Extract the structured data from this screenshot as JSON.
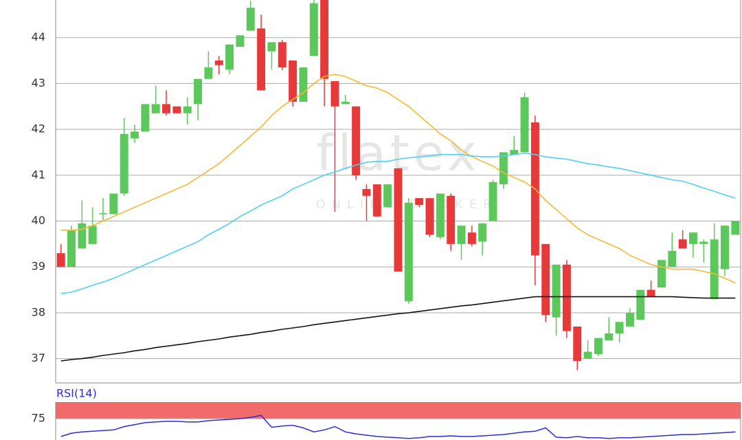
{
  "chart_data": [
    {
      "type": "candlestick",
      "watermark": [
        "flatex",
        "ONLINE BROKER"
      ],
      "open": [
        39.3,
        39.0,
        39.4,
        39.5,
        40.15,
        40.15,
        40.6,
        41.8,
        41.95,
        42.35,
        42.55,
        42.5,
        42.35,
        42.55,
        43.1,
        43.5,
        43.3,
        43.8,
        44.15,
        44.2,
        43.7,
        43.9,
        43.5,
        42.6,
        43.6,
        44.82,
        43.05,
        42.55,
        42.5,
        40.7,
        40.8,
        40.3,
        41.15,
        38.25,
        40.5,
        40.5,
        39.65,
        40.55,
        39.5,
        39.75,
        39.55,
        40.0,
        40.8,
        41.45,
        41.5,
        42.15,
        39.5,
        37.9,
        39.05,
        37.7,
        37.0,
        37.1,
        37.4,
        37.55,
        37.7,
        37.85,
        38.5,
        38.55,
        39.0,
        39.6,
        39.5,
        39.5,
        38.3,
        38.95,
        39.7
      ],
      "high": [
        39.5,
        39.9,
        40.45,
        40.3,
        40.5,
        40.6,
        42.25,
        42.1,
        42.55,
        42.95,
        42.85,
        42.5,
        42.7,
        43.1,
        43.7,
        43.6,
        43.85,
        44.05,
        44.8,
        44.5,
        43.9,
        43.95,
        43.5,
        43.35,
        44.82,
        44.82,
        43.05,
        42.75,
        42.5,
        40.8,
        40.8,
        40.8,
        41.15,
        40.5,
        40.5,
        40.5,
        40.6,
        40.6,
        39.9,
        39.9,
        39.95,
        40.9,
        41.5,
        41.85,
        42.8,
        42.3,
        39.5,
        39.05,
        39.15,
        37.7,
        37.4,
        37.45,
        37.9,
        37.8,
        38.1,
        38.5,
        38.7,
        39.15,
        39.75,
        39.8,
        39.75,
        39.6,
        39.95,
        39.9,
        40.0
      ],
      "low": [
        39.0,
        39.0,
        39.4,
        39.5,
        40.0,
        40.15,
        40.55,
        41.7,
        41.95,
        42.35,
        42.3,
        42.35,
        42.1,
        42.2,
        43.1,
        43.2,
        43.2,
        43.8,
        44.15,
        42.85,
        43.3,
        43.3,
        42.5,
        42.6,
        43.6,
        42.5,
        40.2,
        42.55,
        40.9,
        40.0,
        40.1,
        40.3,
        38.9,
        38.2,
        40.3,
        39.65,
        39.6,
        39.35,
        39.15,
        39.45,
        39.25,
        40.0,
        40.7,
        41.45,
        41.5,
        38.6,
        37.8,
        37.5,
        37.45,
        36.75,
        37.0,
        37.05,
        37.4,
        37.35,
        37.7,
        37.85,
        38.35,
        38.55,
        39.0,
        39.4,
        39.2,
        39.1,
        38.3,
        38.8,
        39.7
      ],
      "close": [
        39.0,
        39.8,
        39.95,
        39.9,
        40.17,
        40.6,
        41.9,
        41.95,
        42.55,
        42.55,
        42.35,
        42.35,
        42.5,
        43.1,
        43.35,
        43.4,
        43.85,
        44.05,
        44.65,
        42.85,
        43.9,
        43.35,
        42.6,
        43.35,
        44.75,
        43.1,
        42.5,
        42.6,
        41.0,
        40.55,
        40.1,
        40.8,
        38.9,
        40.4,
        40.35,
        39.7,
        40.6,
        39.5,
        39.9,
        39.5,
        39.95,
        40.85,
        41.5,
        41.55,
        42.7,
        39.25,
        37.95,
        39.05,
        37.6,
        36.95,
        37.15,
        37.45,
        37.55,
        37.8,
        38.0,
        38.5,
        38.35,
        39.15,
        39.35,
        39.4,
        39.75,
        39.55,
        39.6,
        39.9,
        40.0
      ],
      "up_color": "#5cc85c",
      "down_color": "#e8393a",
      "series": [
        {
          "color": "#f7b733",
          "values": [
            39.8,
            39.8,
            39.82,
            39.9,
            40.0,
            40.1,
            40.2,
            40.3,
            40.4,
            40.5,
            40.6,
            40.7,
            40.8,
            40.95,
            41.1,
            41.25,
            41.45,
            41.65,
            41.85,
            42.05,
            42.3,
            42.5,
            42.65,
            42.8,
            43.0,
            43.15,
            43.2,
            43.15,
            43.05,
            42.95,
            42.9,
            42.8,
            42.65,
            42.5,
            42.3,
            42.1,
            41.9,
            41.75,
            41.55,
            41.4,
            41.3,
            41.2,
            41.05,
            40.95,
            40.85,
            40.7,
            40.45,
            40.25,
            40.05,
            39.85,
            39.7,
            39.6,
            39.5,
            39.4,
            39.25,
            39.15,
            39.05,
            39.0,
            38.95,
            38.95,
            38.95,
            38.9,
            38.85,
            38.75,
            38.65
          ]
        },
        {
          "color": "#4fd0f0",
          "values": [
            38.42,
            38.45,
            38.52,
            38.6,
            38.67,
            38.75,
            38.85,
            38.95,
            39.05,
            39.15,
            39.25,
            39.35,
            39.45,
            39.55,
            39.7,
            39.82,
            39.95,
            40.1,
            40.22,
            40.35,
            40.45,
            40.55,
            40.7,
            40.8,
            40.9,
            41.0,
            41.07,
            41.15,
            41.22,
            41.28,
            41.3,
            41.3,
            41.35,
            41.38,
            41.4,
            41.42,
            41.45,
            41.45,
            41.45,
            41.42,
            41.4,
            41.4,
            41.42,
            41.45,
            41.48,
            41.45,
            41.4,
            41.37,
            41.35,
            41.3,
            41.25,
            41.22,
            41.18,
            41.15,
            41.1,
            41.05,
            41.0,
            40.95,
            40.9,
            40.87,
            40.8,
            40.72,
            40.65,
            40.57,
            40.5
          ]
        },
        {
          "color": "#111111",
          "values": [
            36.95,
            36.98,
            37.0,
            37.03,
            37.07,
            37.1,
            37.13,
            37.17,
            37.2,
            37.24,
            37.27,
            37.3,
            37.33,
            37.37,
            37.4,
            37.43,
            37.47,
            37.5,
            37.53,
            37.57,
            37.6,
            37.64,
            37.67,
            37.7,
            37.74,
            37.77,
            37.8,
            37.83,
            37.86,
            37.89,
            37.92,
            37.95,
            37.98,
            38.0,
            38.03,
            38.06,
            38.09,
            38.12,
            38.15,
            38.17,
            38.2,
            38.23,
            38.26,
            38.29,
            38.32,
            38.35,
            38.35,
            38.35,
            38.35,
            38.35,
            38.35,
            38.35,
            38.35,
            38.35,
            38.35,
            38.35,
            38.35,
            38.35,
            38.35,
            38.34,
            38.33,
            38.32,
            38.32,
            38.32,
            38.32
          ]
        }
      ],
      "ylim": [
        36.47,
        44.82
      ],
      "yticks": [
        37,
        38,
        39,
        40,
        41,
        42,
        43,
        44
      ],
      "grid": true
    },
    {
      "type": "line",
      "title": "RSI(14)",
      "color": "#2b2bd6",
      "values": [
        48,
        53,
        55,
        56,
        57,
        58,
        63,
        66,
        69,
        70,
        71,
        71,
        70,
        70,
        72,
        73,
        74,
        75,
        77,
        80,
        62,
        64,
        65,
        61,
        55,
        58,
        63,
        55,
        52,
        50,
        48,
        47,
        46,
        45,
        46,
        48,
        48,
        49,
        48,
        48,
        49,
        50,
        51,
        53,
        55,
        56,
        61,
        47,
        46,
        48,
        46,
        46,
        45,
        46,
        46,
        47,
        48,
        49,
        50,
        51,
        51,
        52,
        53,
        54,
        55
      ],
      "band": [
        75,
        100
      ],
      "band_color": "#f26b6b",
      "ylim": [
        40,
        100
      ],
      "yticks": [
        75
      ],
      "grid": true
    }
  ]
}
